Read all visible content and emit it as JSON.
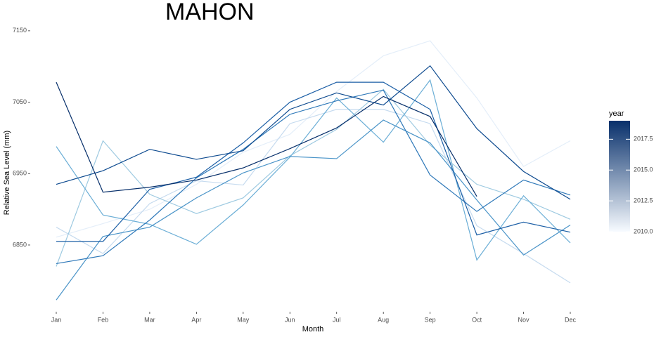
{
  "chart_data": {
    "type": "line",
    "title": "MAHON",
    "x_label": "Month",
    "y_label": "Relative Sea Level (mm)",
    "categories": [
      "Jan",
      "Feb",
      "Mar",
      "Apr",
      "May",
      "Jun",
      "Jul",
      "Aug",
      "Sep",
      "Oct",
      "Nov",
      "Dec"
    ],
    "ylim": [
      6760,
      7160
    ],
    "yticks": [
      6850,
      6950,
      7050,
      7150
    ],
    "series": [
      {
        "color": "#e4eef9",
        "values": [
          6861,
          6880,
          6900,
          6935,
          6980,
          7005,
          7065,
          7115,
          7136,
          7056,
          6960,
          6996
        ]
      },
      {
        "color": "#c6dbef",
        "values": [
          6875,
          6838,
          6908,
          6940,
          6934,
          7020,
          7040,
          7040,
          7020,
          6877,
          6838,
          6797
        ]
      },
      {
        "color": "#9ecae1",
        "values": [
          6820,
          6996,
          6921,
          6894,
          6916,
          6975,
          7012,
          7068,
          6990,
          6935,
          6914,
          6886
        ]
      },
      {
        "color": "#6baed6",
        "values": [
          6988,
          6892,
          6879,
          6851,
          6906,
          6973,
          7056,
          6994,
          7081,
          6829,
          6919,
          6853
        ]
      },
      {
        "color": "#4a94c8",
        "values": [
          6773,
          6862,
          6875,
          6916,
          6951,
          6974,
          6971,
          7025,
          6993,
          6913,
          6836,
          6878
        ]
      },
      {
        "color": "#2f79b9",
        "values": [
          6824,
          6835,
          6885,
          6944,
          6984,
          7033,
          7052,
          7067,
          6948,
          6897,
          6941,
          6920
        ]
      },
      {
        "color": "#1c5fa6",
        "values": [
          6855,
          6855,
          6928,
          6945,
          6993,
          7050,
          7078,
          7078,
          7040,
          6864,
          6882,
          6868
        ]
      },
      {
        "color": "#0d4a8f",
        "values": [
          6935,
          6954,
          6984,
          6970,
          6982,
          7040,
          7063,
          7046,
          7101,
          7013,
          6953,
          6914
        ]
      },
      {
        "color": "#08306b",
        "values": [
          7078,
          6924,
          6931,
          6941,
          6958,
          6985,
          7014,
          7058,
          7030,
          6918,
          null,
          null
        ]
      }
    ],
    "colorbar": {
      "title": "year",
      "lim": [
        2010,
        2019
      ],
      "ticks": [
        {
          "value": 2010,
          "label": "2010.0"
        },
        {
          "value": 2012.5,
          "label": "2012.5"
        },
        {
          "value": 2015,
          "label": "2015.0"
        },
        {
          "value": 2017.5,
          "label": "2017.5"
        }
      ],
      "colors": [
        "#f7fbff",
        "#08306b"
      ]
    }
  }
}
